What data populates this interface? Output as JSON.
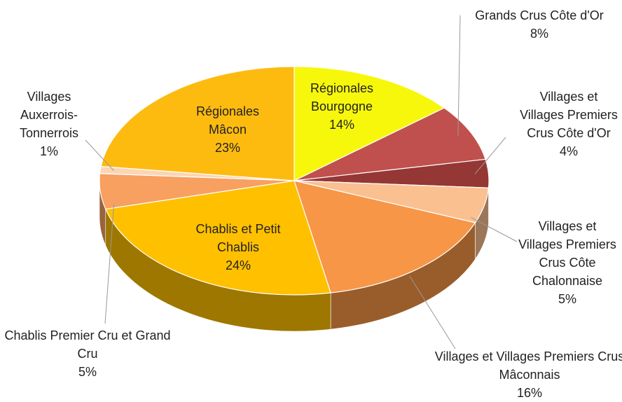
{
  "chart_data": {
    "type": "pie",
    "categories": [
      "Régionales Bourgogne",
      "Grands Crus Côte d'Or",
      "Villages et Villages Premiers Crus Côte d'Or",
      "Villages et Villages Premiers Crus Côte Chalonnaise",
      "Villages et Villages Premiers Crus Mâconnais",
      "Chablis et Petit Chablis",
      "Chablis Premier Cru et Grand Cru",
      "Villages Auxerrois-Tonnerrois",
      "Régionales Mâcon"
    ],
    "values": [
      14,
      8,
      4,
      5,
      16,
      24,
      5,
      1,
      23
    ],
    "value_labels": [
      "14%",
      "8%",
      "4%",
      "5%",
      "16%",
      "24%",
      "5%",
      "1%",
      "23%"
    ],
    "colors": [
      "#f7f70c",
      "#c0504d",
      "#953735",
      "#fac090",
      "#f79646",
      "#ffc000",
      "#f7a060",
      "#fcd5b4",
      "#fdbb10"
    ]
  }
}
